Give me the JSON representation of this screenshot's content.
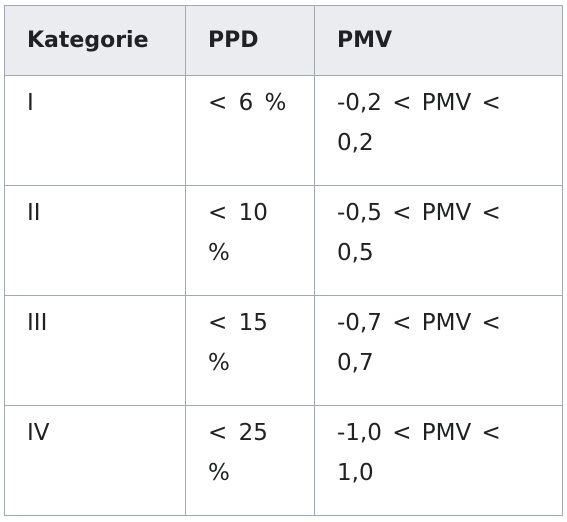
{
  "table": {
    "headers": [
      "Kategorie",
      "PPD",
      "PMV"
    ],
    "rows": [
      {
        "kategorie": "I",
        "ppd": "< 6 %",
        "pmv": "-0,2 < PMV < 0,2"
      },
      {
        "kategorie": "II",
        "ppd": "< 10 %",
        "pmv": "-0,5 < PMV < 0,5"
      },
      {
        "kategorie": "III",
        "ppd": "< 15 %",
        "pmv": "-0,7 < PMV < 0,7"
      },
      {
        "kategorie": "IV",
        "ppd": "< 25 %",
        "pmv": "-1,0 < PMV < 1,0"
      }
    ]
  }
}
